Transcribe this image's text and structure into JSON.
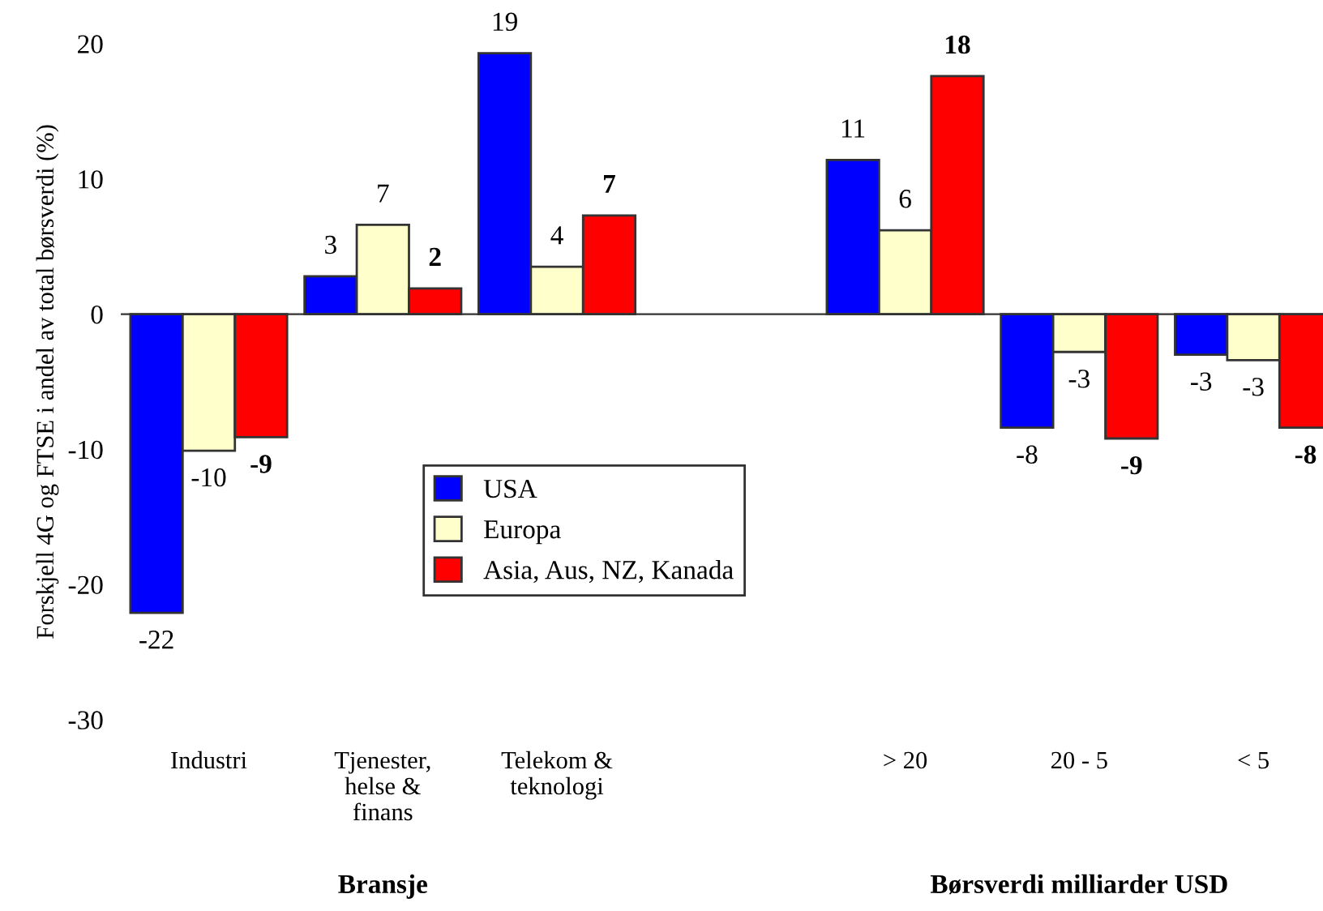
{
  "chart_data": {
    "type": "bar",
    "ylabel": "Forskjell 4G og FTSE i andel av total børsverdi (%)",
    "categories": [
      "Industri",
      "Tjenester,\nhelse &\nfinans",
      "Telekom &\nteknologi",
      null,
      "> 20",
      "20 - 5",
      "< 5"
    ],
    "series": [
      {
        "name": "USA",
        "color": "#0000ff",
        "values": [
          -22.1,
          2.8,
          19.3,
          null,
          11.4,
          -8.4,
          -3.0
        ],
        "value_labels": [
          "-22",
          "3",
          "19",
          null,
          "11",
          "-8",
          "-3"
        ]
      },
      {
        "name": "Europa",
        "color": "#ffffcc",
        "values": [
          -10.1,
          6.6,
          3.5,
          null,
          6.2,
          -2.8,
          -3.4
        ],
        "value_labels": [
          "-10",
          "7",
          "4",
          null,
          "6",
          "-3",
          "-3"
        ]
      },
      {
        "name": "Asia, Aus, NZ, Kanada",
        "color": "#ff0000",
        "values": [
          -9.1,
          1.9,
          7.3,
          null,
          17.6,
          -9.2,
          -8.4
        ],
        "value_labels": [
          "-9",
          "2",
          "7",
          null,
          "18",
          "-9",
          "-8"
        ]
      }
    ],
    "ylim": [
      -30,
      20
    ],
    "yticks": [
      -30,
      -20,
      -10,
      0,
      10,
      20
    ],
    "legend": "center",
    "annotations": [
      "Bransje",
      "Børsverdi milliarder USD"
    ]
  }
}
